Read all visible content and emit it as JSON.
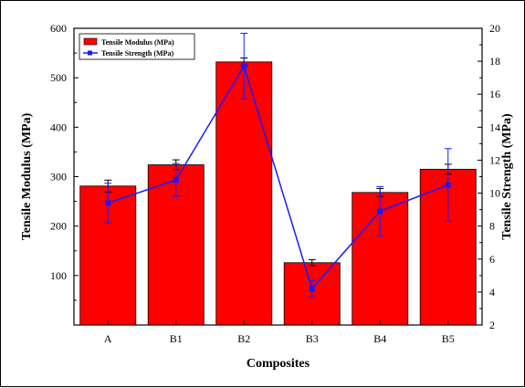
{
  "chart_data": {
    "type": "bar",
    "title": "",
    "xlabel": "Composites",
    "ylabel": "Tensile Modulus (MPa)",
    "y2label": "Tensile Strength (MPa)",
    "categories": [
      "A",
      "B1",
      "B2",
      "B3",
      "B4",
      "B5"
    ],
    "ylim": [
      0,
      600
    ],
    "y_ticks": [
      100,
      200,
      300,
      400,
      500,
      600
    ],
    "y2lim": [
      2,
      20
    ],
    "y2_ticks": [
      2,
      4,
      6,
      8,
      10,
      12,
      14,
      16,
      18,
      20
    ],
    "legend_position": "top-left",
    "grid": false,
    "series": [
      {
        "name": "Tensile Modulus (MPa)",
        "type": "bar",
        "axis": "left",
        "color": "#ff0000",
        "values": [
          281,
          324,
          532,
          126,
          268,
          315
        ],
        "errors": [
          12,
          10,
          8,
          6,
          8,
          10
        ]
      },
      {
        "name": "Tensile Strength (MPa)",
        "type": "line",
        "axis": "right",
        "color": "#1a1aff",
        "values": [
          9.4,
          10.8,
          17.7,
          4.2,
          8.9,
          10.5
        ],
        "errors": [
          1.2,
          1.0,
          2.0,
          0.5,
          1.5,
          2.2
        ]
      }
    ]
  }
}
